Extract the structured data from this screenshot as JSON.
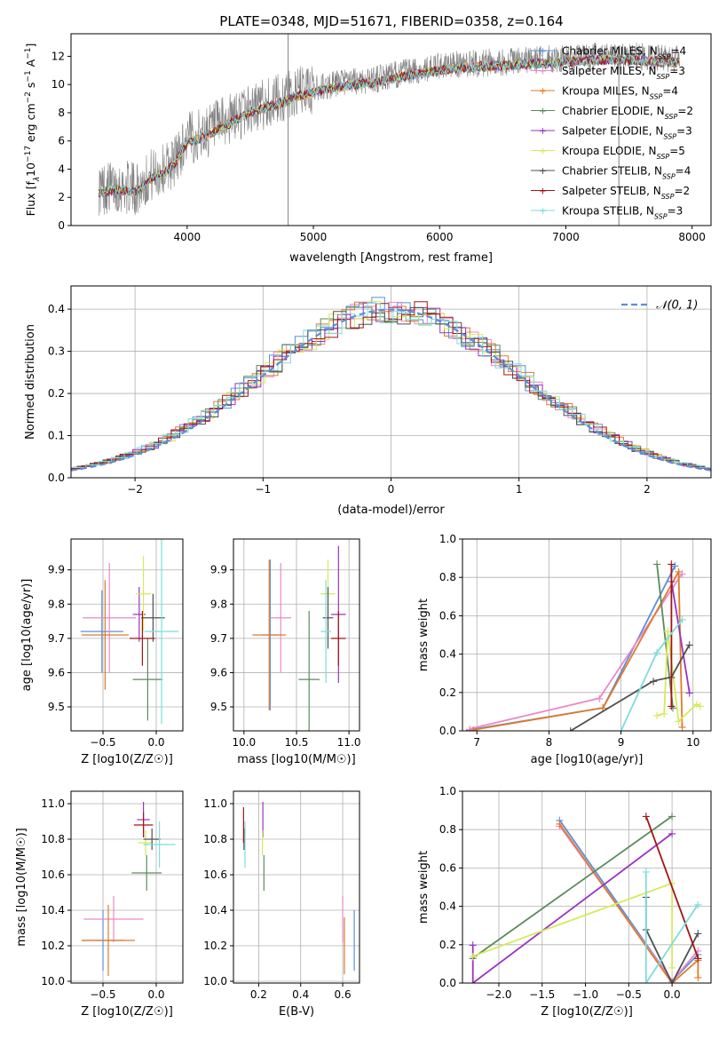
{
  "figure": {
    "title": "PLATE=0348, MJD=51671, FIBERID=0358, z=0.164"
  },
  "colors": {
    "Chabrier MILES": "#5b8fdb",
    "Salpeter MILES": "#e88ac8",
    "Kroupa MILES": "#e07a2c",
    "Chabrier ELODIE": "#5c8a5c",
    "Salpeter ELODIE": "#9a33c2",
    "Kroupa ELODIE": "#d6ea5a",
    "Chabrier STELIB": "#505050",
    "Salpeter STELIB": "#a31414",
    "Kroupa STELIB": "#7ddcdc",
    "observed": "#808080",
    "normal": "#5b8fdb"
  },
  "chart_data": [
    {
      "id": "spectrum",
      "type": "line",
      "title": "PLATE=0348, MJD=51671, FIBERID=0358, z=0.164",
      "xlabel": "wavelength [Angstrom, rest frame]",
      "ylabel_parts": [
        "Flux [f",
        "λ",
        "10",
        "−17",
        " erg cm",
        "−2",
        " s",
        "−1",
        " A",
        "−1",
        "]"
      ],
      "xlim": [
        3080,
        8150
      ],
      "ylim": [
        0,
        13.6
      ],
      "xticks": [
        4000,
        5000,
        6000,
        7000,
        8000
      ],
      "yticks": [
        0,
        2,
        4,
        6,
        8,
        10,
        12
      ],
      "grid": false,
      "legend_position": "bottom-right",
      "legend": [
        {
          "name": "Chabrier MILES",
          "nssp": "4"
        },
        {
          "name": "Salpeter MILES",
          "nssp": "3"
        },
        {
          "name": "Kroupa MILES",
          "nssp": "4"
        },
        {
          "name": "Chabrier ELODIE",
          "nssp": "2"
        },
        {
          "name": "Salpeter ELODIE",
          "nssp": "3"
        },
        {
          "name": "Kroupa ELODIE",
          "nssp": "5"
        },
        {
          "name": "Chabrier STELIB",
          "nssp": "4"
        },
        {
          "name": "Salpeter STELIB",
          "nssp": "2"
        },
        {
          "name": "Kroupa STELIB",
          "nssp": "3"
        }
      ],
      "continuum": {
        "x": [
          3300,
          3450,
          3600,
          3700,
          3800,
          3900,
          4000,
          4100,
          4300,
          4500,
          4700,
          4900,
          5100,
          5300,
          5500,
          5700,
          5900,
          6100,
          6300,
          6500,
          6700,
          6900,
          7100,
          7300,
          7500,
          7700,
          7900
        ],
        "y": [
          2.6,
          2.8,
          2.6,
          3.5,
          3.9,
          4.6,
          6.2,
          6.4,
          7.3,
          8.3,
          8.8,
          9.5,
          9.9,
          10.2,
          10.4,
          10.8,
          11.1,
          11.4,
          11.5,
          11.6,
          11.7,
          11.8,
          11.9,
          12.0,
          12.0,
          11.9,
          11.8
        ]
      },
      "spikes": [
        {
          "x": 4800,
          "y": 13.6
        },
        {
          "x": 7420,
          "y": 0
        }
      ]
    },
    {
      "id": "residuals",
      "type": "area",
      "xlabel": "(data-model)/error",
      "ylabel": "Normed distribution",
      "xlim": [
        -2.5,
        2.5
      ],
      "ylim": [
        0,
        0.455
      ],
      "xticks": [
        -2,
        -1,
        0,
        1,
        2
      ],
      "yticks": [
        0.0,
        0.1,
        0.2,
        0.3,
        0.4
      ],
      "grid": true,
      "legend": [
        "𝒩(0, 1)"
      ],
      "legend_position": "top-right",
      "bin_width": 0.1
    },
    {
      "id": "age-vs-z",
      "type": "scatter",
      "xlabel": "Z [log10(Z/Z☉)]",
      "ylabel": "age  [log10(age/yr)]",
      "xlim": [
        -0.8,
        0.25
      ],
      "ylim": [
        9.43,
        9.99
      ],
      "xticks": [
        -0.5,
        0.0
      ],
      "yticks": [
        9.5,
        9.6,
        9.7,
        9.8,
        9.9
      ],
      "grid": true,
      "points": [
        {
          "series": "Chabrier MILES",
          "x": -0.51,
          "y": 9.72,
          "xerr": 0.2,
          "yerr": 0.12
        },
        {
          "series": "Salpeter MILES",
          "x": -0.44,
          "y": 9.76,
          "xerr": 0.25,
          "yerr": 0.16
        },
        {
          "series": "Kroupa MILES",
          "x": -0.48,
          "y": 9.71,
          "xerr": 0.22,
          "yerr": 0.16
        },
        {
          "series": "Chabrier ELODIE",
          "x": -0.08,
          "y": 9.58,
          "xerr": 0.14,
          "yerr": 0.12
        },
        {
          "series": "Salpeter ELODIE",
          "x": -0.16,
          "y": 9.77,
          "xerr": 0.06,
          "yerr": 0.08
        },
        {
          "series": "Kroupa ELODIE",
          "x": -0.12,
          "y": 9.83,
          "xerr": 0.07,
          "yerr": 0.11
        },
        {
          "series": "Chabrier STELIB",
          "x": -0.03,
          "y": 9.76,
          "xerr": 0.11,
          "yerr": 0.07
        },
        {
          "series": "Salpeter STELIB",
          "x": -0.13,
          "y": 9.7,
          "xerr": 0.12,
          "yerr": 0.08
        },
        {
          "series": "Kroupa STELIB",
          "x": 0.05,
          "y": 9.72,
          "xerr": 0.16,
          "yerr": 0.27
        }
      ]
    },
    {
      "id": "age-vs-mass",
      "type": "scatter",
      "xlabel": "mass [log10(M/M☉)]",
      "xlim": [
        9.9,
        11.1
      ],
      "ylim": [
        9.43,
        9.99
      ],
      "xticks": [
        10.0,
        10.5,
        11.0
      ],
      "yticks": [
        9.5,
        9.6,
        9.7,
        9.8,
        9.9
      ],
      "grid": true,
      "points": [
        {
          "series": "Chabrier MILES",
          "x": 10.25,
          "y": 9.71,
          "xerr": 0.08,
          "yerr": 0.22
        },
        {
          "series": "Salpeter MILES",
          "x": 10.35,
          "y": 9.76,
          "xerr": 0.1,
          "yerr": 0.16
        },
        {
          "series": "Kroupa MILES",
          "x": 10.24,
          "y": 9.71,
          "xerr": 0.16,
          "yerr": 0.22
        },
        {
          "series": "Chabrier ELODIE",
          "x": 10.62,
          "y": 9.58,
          "xerr": 0.1,
          "yerr": 0.2
        },
        {
          "series": "Salpeter ELODIE",
          "x": 10.9,
          "y": 9.77,
          "xerr": 0.07,
          "yerr": 0.2
        },
        {
          "series": "Kroupa ELODIE",
          "x": 10.8,
          "y": 9.83,
          "xerr": 0.07,
          "yerr": 0.1
        },
        {
          "series": "Chabrier STELIB",
          "x": 10.8,
          "y": 9.76,
          "xerr": 0.05,
          "yerr": 0.09
        },
        {
          "series": "Salpeter STELIB",
          "x": 10.9,
          "y": 9.7,
          "xerr": 0.07,
          "yerr": 0.08
        },
        {
          "series": "Kroupa STELIB",
          "x": 10.78,
          "y": 9.72,
          "xerr": 0.05,
          "yerr": 0.15
        }
      ]
    },
    {
      "id": "mass-vs-z",
      "type": "scatter",
      "xlabel": "Z [log10(Z/Z☉)]",
      "ylabel": "mass [log10(M/M☉)]",
      "xlim": [
        -0.8,
        0.25
      ],
      "ylim": [
        9.99,
        11.07
      ],
      "xticks": [
        -0.5,
        0.0
      ],
      "yticks": [
        10.0,
        10.2,
        10.4,
        10.6,
        10.8,
        11.0
      ],
      "grid": true,
      "points": [
        {
          "series": "Chabrier MILES",
          "x": -0.5,
          "y": 10.23,
          "xerr": 0.2,
          "yerr": 0.17
        },
        {
          "series": "Salpeter MILES",
          "x": -0.4,
          "y": 10.35,
          "xerr": 0.28,
          "yerr": 0.13
        },
        {
          "series": "Kroupa MILES",
          "x": -0.45,
          "y": 10.23,
          "xerr": 0.25,
          "yerr": 0.2
        },
        {
          "series": "Chabrier ELODIE",
          "x": -0.09,
          "y": 10.61,
          "xerr": 0.14,
          "yerr": 0.1
        },
        {
          "series": "Salpeter ELODIE",
          "x": -0.12,
          "y": 10.91,
          "xerr": 0.06,
          "yerr": 0.1
        },
        {
          "series": "Kroupa ELODIE",
          "x": -0.1,
          "y": 10.78,
          "xerr": 0.07,
          "yerr": 0.07
        },
        {
          "series": "Chabrier STELIB",
          "x": -0.04,
          "y": 10.8,
          "xerr": 0.08,
          "yerr": 0.06
        },
        {
          "series": "Salpeter STELIB",
          "x": -0.12,
          "y": 10.88,
          "xerr": 0.09,
          "yerr": 0.07
        },
        {
          "series": "Kroupa STELIB",
          "x": 0.03,
          "y": 10.77,
          "xerr": 0.15,
          "yerr": 0.13
        }
      ]
    },
    {
      "id": "mass-vs-ebv",
      "type": "scatter",
      "xlabel": "E(B-V)",
      "xlim": [
        0.08,
        0.68
      ],
      "ylim": [
        9.99,
        11.07
      ],
      "xticks": [
        0.2,
        0.4,
        0.6
      ],
      "yticks": [
        10.0,
        10.2,
        10.4,
        10.6,
        10.8,
        11.0
      ],
      "grid": true,
      "points": [
        {
          "series": "Chabrier MILES",
          "x": 0.655,
          "y": 10.23,
          "yerr": 0.17
        },
        {
          "series": "Salpeter MILES",
          "x": 0.6,
          "y": 10.35,
          "yerr": 0.13
        },
        {
          "series": "Kroupa MILES",
          "x": 0.608,
          "y": 10.2,
          "yerr": 0.16
        },
        {
          "series": "Chabrier ELODIE",
          "x": 0.225,
          "y": 10.61,
          "yerr": 0.1
        },
        {
          "series": "Salpeter ELODIE",
          "x": 0.22,
          "y": 10.91,
          "yerr": 0.1
        },
        {
          "series": "Kroupa ELODIE",
          "x": 0.218,
          "y": 10.78,
          "yerr": 0.07
        },
        {
          "series": "Chabrier STELIB",
          "x": 0.13,
          "y": 10.8,
          "yerr": 0.06
        },
        {
          "series": "Salpeter STELIB",
          "x": 0.128,
          "y": 10.88,
          "yerr": 0.1
        },
        {
          "series": "Kroupa STELIB",
          "x": 0.135,
          "y": 10.77,
          "yerr": 0.13
        }
      ]
    },
    {
      "id": "weight-vs-age",
      "type": "line",
      "xlabel": "age  [log10(age/yr)]",
      "ylabel": "mass weight",
      "xlim": [
        6.8,
        10.25
      ],
      "ylim": [
        0,
        1.0
      ],
      "xticks": [
        7,
        8,
        9,
        10
      ],
      "yticks": [
        0.0,
        0.2,
        0.4,
        0.6,
        0.8,
        1.0
      ],
      "grid": true,
      "series": [
        {
          "name": "Chabrier MILES",
          "x": [
            6.9,
            8.75,
            9.75
          ],
          "y": [
            0.005,
            0.12,
            0.86
          ]
        },
        {
          "name": "Salpeter MILES",
          "x": [
            6.9,
            8.7,
            9.85
          ],
          "y": [
            0.01,
            0.17,
            0.82
          ]
        },
        {
          "name": "Kroupa MILES",
          "x": [
            6.95,
            8.75,
            9.8,
            9.85
          ],
          "y": [
            0.005,
            0.12,
            0.83,
            0.02
          ]
        },
        {
          "name": "Chabrier ELODIE",
          "x": [
            9.5,
            9.72
          ],
          "y": [
            0.87,
            0.12
          ]
        },
        {
          "name": "Salpeter ELODIE",
          "x": [
            9.7,
            9.95
          ],
          "y": [
            0.78,
            0.2
          ]
        },
        {
          "name": "Kroupa ELODIE",
          "x": [
            9.5,
            9.6,
            9.65,
            9.8,
            10.05,
            10.1
          ],
          "y": [
            0.08,
            0.09,
            0.52,
            0.05,
            0.14,
            0.13
          ]
        },
        {
          "name": "Chabrier STELIB",
          "x": [
            8.3,
            9.45,
            9.7,
            9.95
          ],
          "y": [
            0.0,
            0.26,
            0.28,
            0.45
          ]
        },
        {
          "name": "Salpeter STELIB",
          "x": [
            9.7,
            9.7
          ],
          "y": [
            0.87,
            0.13
          ]
        },
        {
          "name": "Kroupa STELIB",
          "x": [
            9.0,
            9.5,
            9.85
          ],
          "y": [
            0.0,
            0.41,
            0.58
          ]
        }
      ]
    },
    {
      "id": "weight-vs-z",
      "type": "line",
      "xlabel": "Z [log10(Z/Z☉)]",
      "ylabel": "mass weight",
      "xlim": [
        -2.42,
        0.45
      ],
      "ylim": [
        0,
        1.0
      ],
      "xticks": [
        -2.0,
        -1.5,
        -1.0,
        -0.5,
        0.0
      ],
      "yticks": [
        0.0,
        0.2,
        0.4,
        0.6,
        0.8,
        1.0
      ],
      "grid": true,
      "series": [
        {
          "name": "Chabrier MILES",
          "x": [
            -1.3,
            0.0,
            0.3
          ],
          "y": [
            0.85,
            0.01,
            0.15
          ]
        },
        {
          "name": "Salpeter MILES",
          "x": [
            -1.3,
            0.0,
            0.3
          ],
          "y": [
            0.82,
            0.01,
            0.17
          ]
        },
        {
          "name": "Kroupa MILES",
          "x": [
            -1.3,
            0.0,
            0.3,
            0.3
          ],
          "y": [
            0.83,
            0.0,
            0.12,
            0.03
          ]
        },
        {
          "name": "Chabrier ELODIE",
          "x": [
            -2.3,
            0.0
          ],
          "y": [
            0.13,
            0.87
          ]
        },
        {
          "name": "Salpeter ELODIE",
          "x": [
            -2.3,
            -2.3,
            0.0
          ],
          "y": [
            0.2,
            0.0,
            0.78
          ]
        },
        {
          "name": "Kroupa ELODIE",
          "x": [
            -2.3,
            0.0,
            0.0
          ],
          "y": [
            0.14,
            0.52,
            0.08
          ]
        },
        {
          "name": "Chabrier STELIB",
          "x": [
            -0.3,
            -0.3,
            0.0,
            0.3
          ],
          "y": [
            0.45,
            0.28,
            0.0,
            0.26
          ]
        },
        {
          "name": "Salpeter STELIB",
          "x": [
            -0.3,
            0.3
          ],
          "y": [
            0.87,
            0.13
          ]
        },
        {
          "name": "Kroupa STELIB",
          "x": [
            -0.3,
            -0.3,
            0.3
          ],
          "y": [
            0.58,
            0.0,
            0.41
          ]
        }
      ]
    }
  ]
}
